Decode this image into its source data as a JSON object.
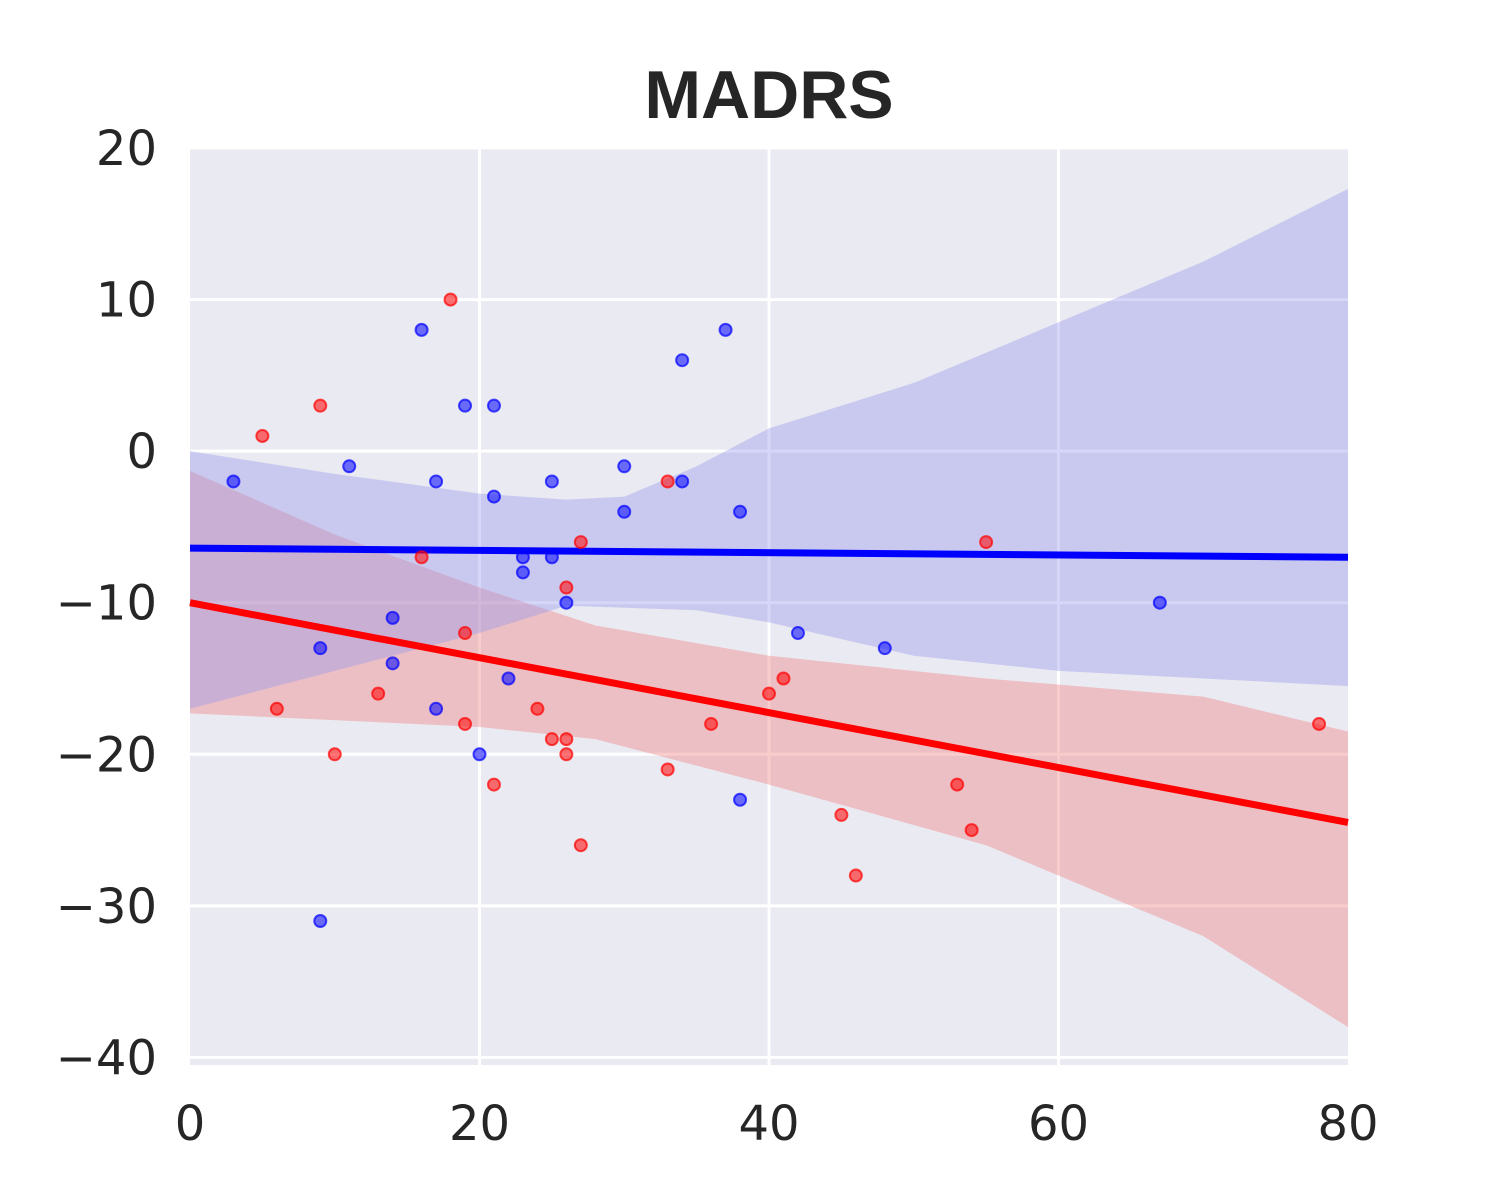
{
  "chart_data": {
    "type": "scatter",
    "title": "MADRS",
    "xlabel": "",
    "ylabel": "",
    "xlim": [
      0,
      80
    ],
    "ylim": [
      -40.5,
      20
    ],
    "xticks": [
      0,
      20,
      40,
      60,
      80
    ],
    "yticks": [
      20,
      10,
      0,
      -10,
      -20,
      -30,
      -40
    ],
    "xtick_labels": [
      "0",
      "20",
      "40",
      "60",
      "80"
    ],
    "ytick_labels": [
      "20",
      "10",
      "0",
      "−10",
      "−20",
      "−30",
      "−40"
    ],
    "grid": true,
    "background": "#eaeaf2",
    "series": [
      {
        "color": "#ff0000",
        "band_color": "#f08080",
        "points": [
          [
            5,
            1
          ],
          [
            6,
            -17
          ],
          [
            9,
            3
          ],
          [
            10,
            -20
          ],
          [
            13,
            -16
          ],
          [
            16,
            -7
          ],
          [
            18,
            10
          ],
          [
            19,
            -12
          ],
          [
            19,
            -18
          ],
          [
            21,
            -22
          ],
          [
            24,
            -17
          ],
          [
            25,
            -19
          ],
          [
            26,
            -9
          ],
          [
            26,
            -19
          ],
          [
            26,
            -20
          ],
          [
            27,
            -6
          ],
          [
            27,
            -26
          ],
          [
            33,
            -2
          ],
          [
            33,
            -21
          ],
          [
            36,
            -18
          ],
          [
            40,
            -16
          ],
          [
            41,
            -15
          ],
          [
            45,
            -24
          ],
          [
            46,
            -28
          ],
          [
            53,
            -22
          ],
          [
            54,
            -25
          ],
          [
            55,
            -6
          ],
          [
            78,
            -18
          ]
        ],
        "fit_line": [
          [
            0,
            -10
          ],
          [
            80,
            -24.5
          ]
        ],
        "ci_upper": [
          [
            0,
            -1.3
          ],
          [
            10,
            -5.5
          ],
          [
            20,
            -9
          ],
          [
            28,
            -11.5
          ],
          [
            40,
            -13.5
          ],
          [
            55,
            -15
          ],
          [
            70,
            -16.2
          ],
          [
            80,
            -18.5
          ]
        ],
        "ci_lower": [
          [
            0,
            -17.3
          ],
          [
            20,
            -18.2
          ],
          [
            28,
            -19
          ],
          [
            40,
            -22
          ],
          [
            55,
            -26
          ],
          [
            70,
            -32
          ],
          [
            80,
            -38
          ]
        ]
      },
      {
        "color": "#0000ff",
        "band_color": "#9999ee",
        "points": [
          [
            3,
            -2
          ],
          [
            9,
            -13
          ],
          [
            9,
            -31
          ],
          [
            11,
            -1
          ],
          [
            14,
            -11
          ],
          [
            14,
            -14
          ],
          [
            16,
            8
          ],
          [
            17,
            -2
          ],
          [
            17,
            -17
          ],
          [
            19,
            3
          ],
          [
            20,
            -20
          ],
          [
            21,
            3
          ],
          [
            21,
            -3
          ],
          [
            22,
            -15
          ],
          [
            23,
            -7
          ],
          [
            23,
            -8
          ],
          [
            25,
            -2
          ],
          [
            25,
            -7
          ],
          [
            26,
            -10
          ],
          [
            30,
            -1
          ],
          [
            30,
            -4
          ],
          [
            34,
            6
          ],
          [
            34,
            -2
          ],
          [
            37,
            8
          ],
          [
            38,
            -4
          ],
          [
            38,
            -23
          ],
          [
            42,
            -12
          ],
          [
            48,
            -13
          ],
          [
            67,
            -10
          ]
        ],
        "fit_line": [
          [
            0,
            -6.4
          ],
          [
            80,
            -7
          ]
        ],
        "ci_upper": [
          [
            0,
            0
          ],
          [
            10,
            -1.5
          ],
          [
            20,
            -2.8
          ],
          [
            26,
            -3.2
          ],
          [
            30,
            -3
          ],
          [
            35,
            -1
          ],
          [
            40,
            1.5
          ],
          [
            50,
            4.5
          ],
          [
            60,
            8.5
          ],
          [
            70,
            12.5
          ],
          [
            80,
            17.3
          ]
        ],
        "ci_lower": [
          [
            0,
            -17
          ],
          [
            10,
            -14.5
          ],
          [
            20,
            -12
          ],
          [
            26,
            -10.2
          ],
          [
            35,
            -10.5
          ],
          [
            40,
            -11.3
          ],
          [
            50,
            -13.5
          ],
          [
            60,
            -14.5
          ],
          [
            70,
            -15
          ],
          [
            80,
            -15.5
          ]
        ]
      }
    ]
  }
}
